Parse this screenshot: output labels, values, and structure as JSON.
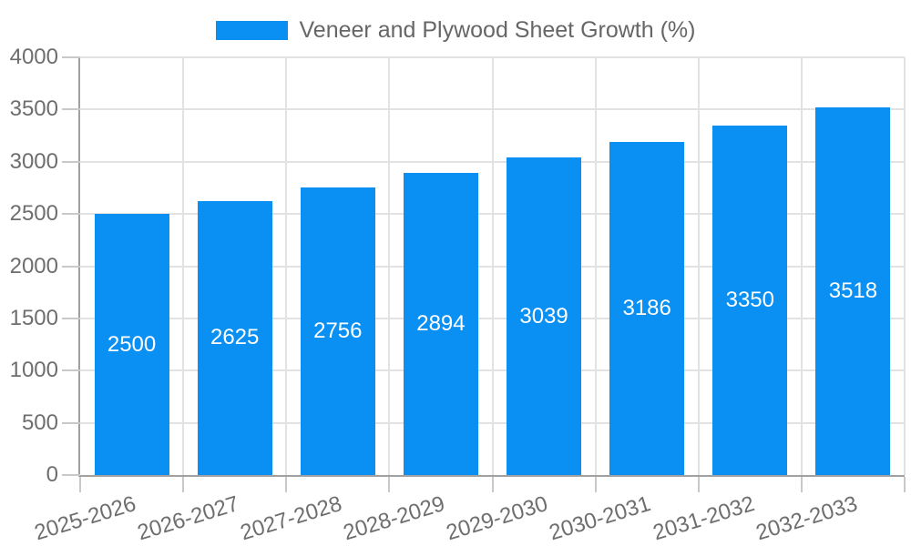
{
  "chart_data": {
    "type": "bar",
    "title": "Veneer and Plywood Sheet Growth (%)",
    "legend_label": "Veneer and Plywood Sheet Growth (%)",
    "legend_position": "top",
    "categories": [
      "2025-2026",
      "2026-2027",
      "2027-2028",
      "2028-2029",
      "2029-2030",
      "2030-2031",
      "2031-2032",
      "2032-2033"
    ],
    "values": [
      2500,
      2625,
      2756,
      2894,
      3039,
      3186,
      3350,
      3518
    ],
    "xlabel": "",
    "ylabel": "",
    "ylim": [
      0,
      4000
    ],
    "yticks": [
      0,
      500,
      1000,
      1500,
      2000,
      2500,
      3000,
      3500,
      4000
    ],
    "grid": true,
    "bar_color": "#0a8ff2",
    "value_label_color": "#ffffff",
    "axis_text_color": "#6e6e6e",
    "legend_text_color": "#666666",
    "grid_color": "#e2e2e2",
    "tick_color": "#c9c9c9",
    "axis_line_color": "#a0a0a0",
    "background_color": "#ffffff"
  }
}
